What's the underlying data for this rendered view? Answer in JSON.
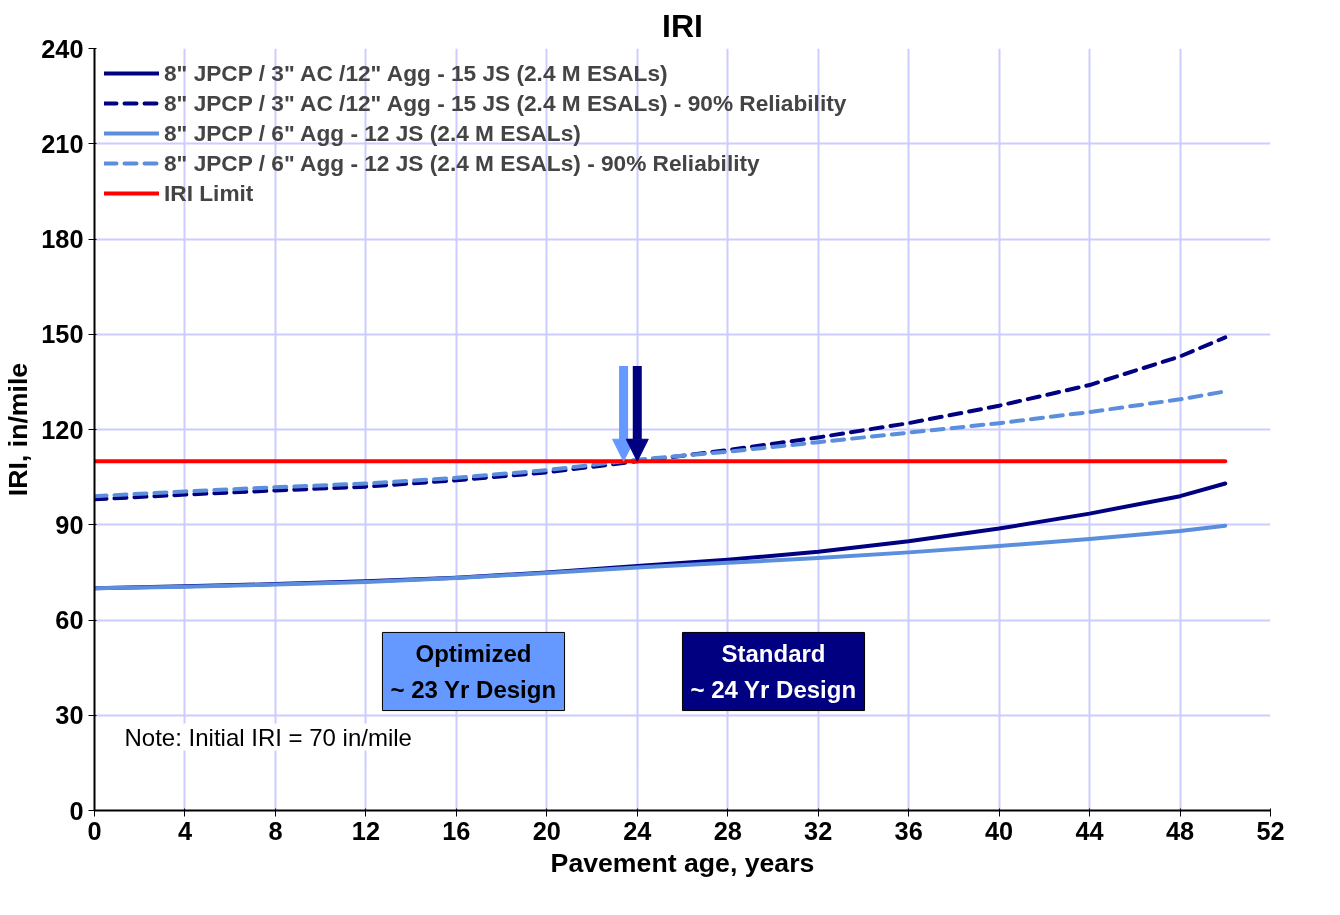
{
  "chart_data": {
    "type": "line",
    "title": "IRI",
    "xlabel": "Pavement age, years",
    "ylabel": "IRI, in/mile",
    "xlim": [
      0,
      52
    ],
    "xticks": [
      0,
      4,
      8,
      12,
      16,
      20,
      24,
      28,
      32,
      36,
      40,
      44,
      48,
      52
    ],
    "ylim": [
      0,
      240
    ],
    "yticks": [
      0,
      30,
      60,
      90,
      120,
      150,
      180,
      210,
      240
    ],
    "grid": true,
    "legend": "top left",
    "marker": "none",
    "series": [
      {
        "name": "8\" JPCP / 3\" AC /12\" Agg - 15 JS (2.4 M ESALs)",
        "color": "#000080",
        "line_style": "solid",
        "x": [
          0,
          4,
          8,
          12,
          16,
          20,
          24,
          28,
          32,
          36,
          40,
          44,
          48,
          50
        ],
        "values": [
          70,
          70.6,
          71.3,
          72.2,
          73.3,
          75,
          77,
          79,
          81.5,
          84.8,
          88.8,
          93.5,
          99,
          103
        ]
      },
      {
        "name": "8\" JPCP / 3\" AC /12\" Agg - 15 JS (2.4 M ESALs) - 90% Reliability",
        "color": "#000080",
        "line_style": "dashed",
        "x": [
          0,
          4,
          8,
          12,
          16,
          20,
          24,
          28,
          32,
          36,
          40,
          44,
          48,
          50
        ],
        "values": [
          98,
          99.5,
          100.8,
          102,
          104,
          106.5,
          110,
          113.5,
          117.5,
          122,
          127.5,
          134,
          143,
          149
        ]
      },
      {
        "name": "8\" JPCP / 6\" Agg - 12 JS (2.4 M ESALs)",
        "color": "#5b8fdd",
        "line_style": "solid",
        "x": [
          0,
          4,
          8,
          12,
          16,
          20,
          24,
          28,
          32,
          36,
          40,
          44,
          48,
          50
        ],
        "values": [
          70,
          70.5,
          71.2,
          72,
          73.2,
          74.8,
          76.5,
          78,
          79.5,
          81.3,
          83.3,
          85.5,
          88,
          89.7
        ]
      },
      {
        "name": "8\" JPCP / 6\" Agg - 12 JS (2.4 M ESALs) - 90% Reliability",
        "color": "#5b8fdd",
        "line_style": "dashed",
        "x": [
          0,
          4,
          8,
          12,
          16,
          20,
          24,
          28,
          32,
          36,
          40,
          44,
          48,
          50
        ],
        "values": [
          99,
          100.5,
          101.8,
          103,
          104.8,
          107.2,
          110.5,
          113,
          116,
          119,
          122,
          125.5,
          129.5,
          132
        ]
      },
      {
        "name": "IRI Limit",
        "color": "#ff0000",
        "line_style": "solid",
        "x": [
          0,
          50
        ],
        "values": [
          110,
          110
        ]
      }
    ],
    "annotations": [
      "Optimized\n~ 23 Yr Design",
      "Standard\n~ 24 Yr Design",
      "Note:  Initial IRI = 70 in/mile"
    ]
  }
}
